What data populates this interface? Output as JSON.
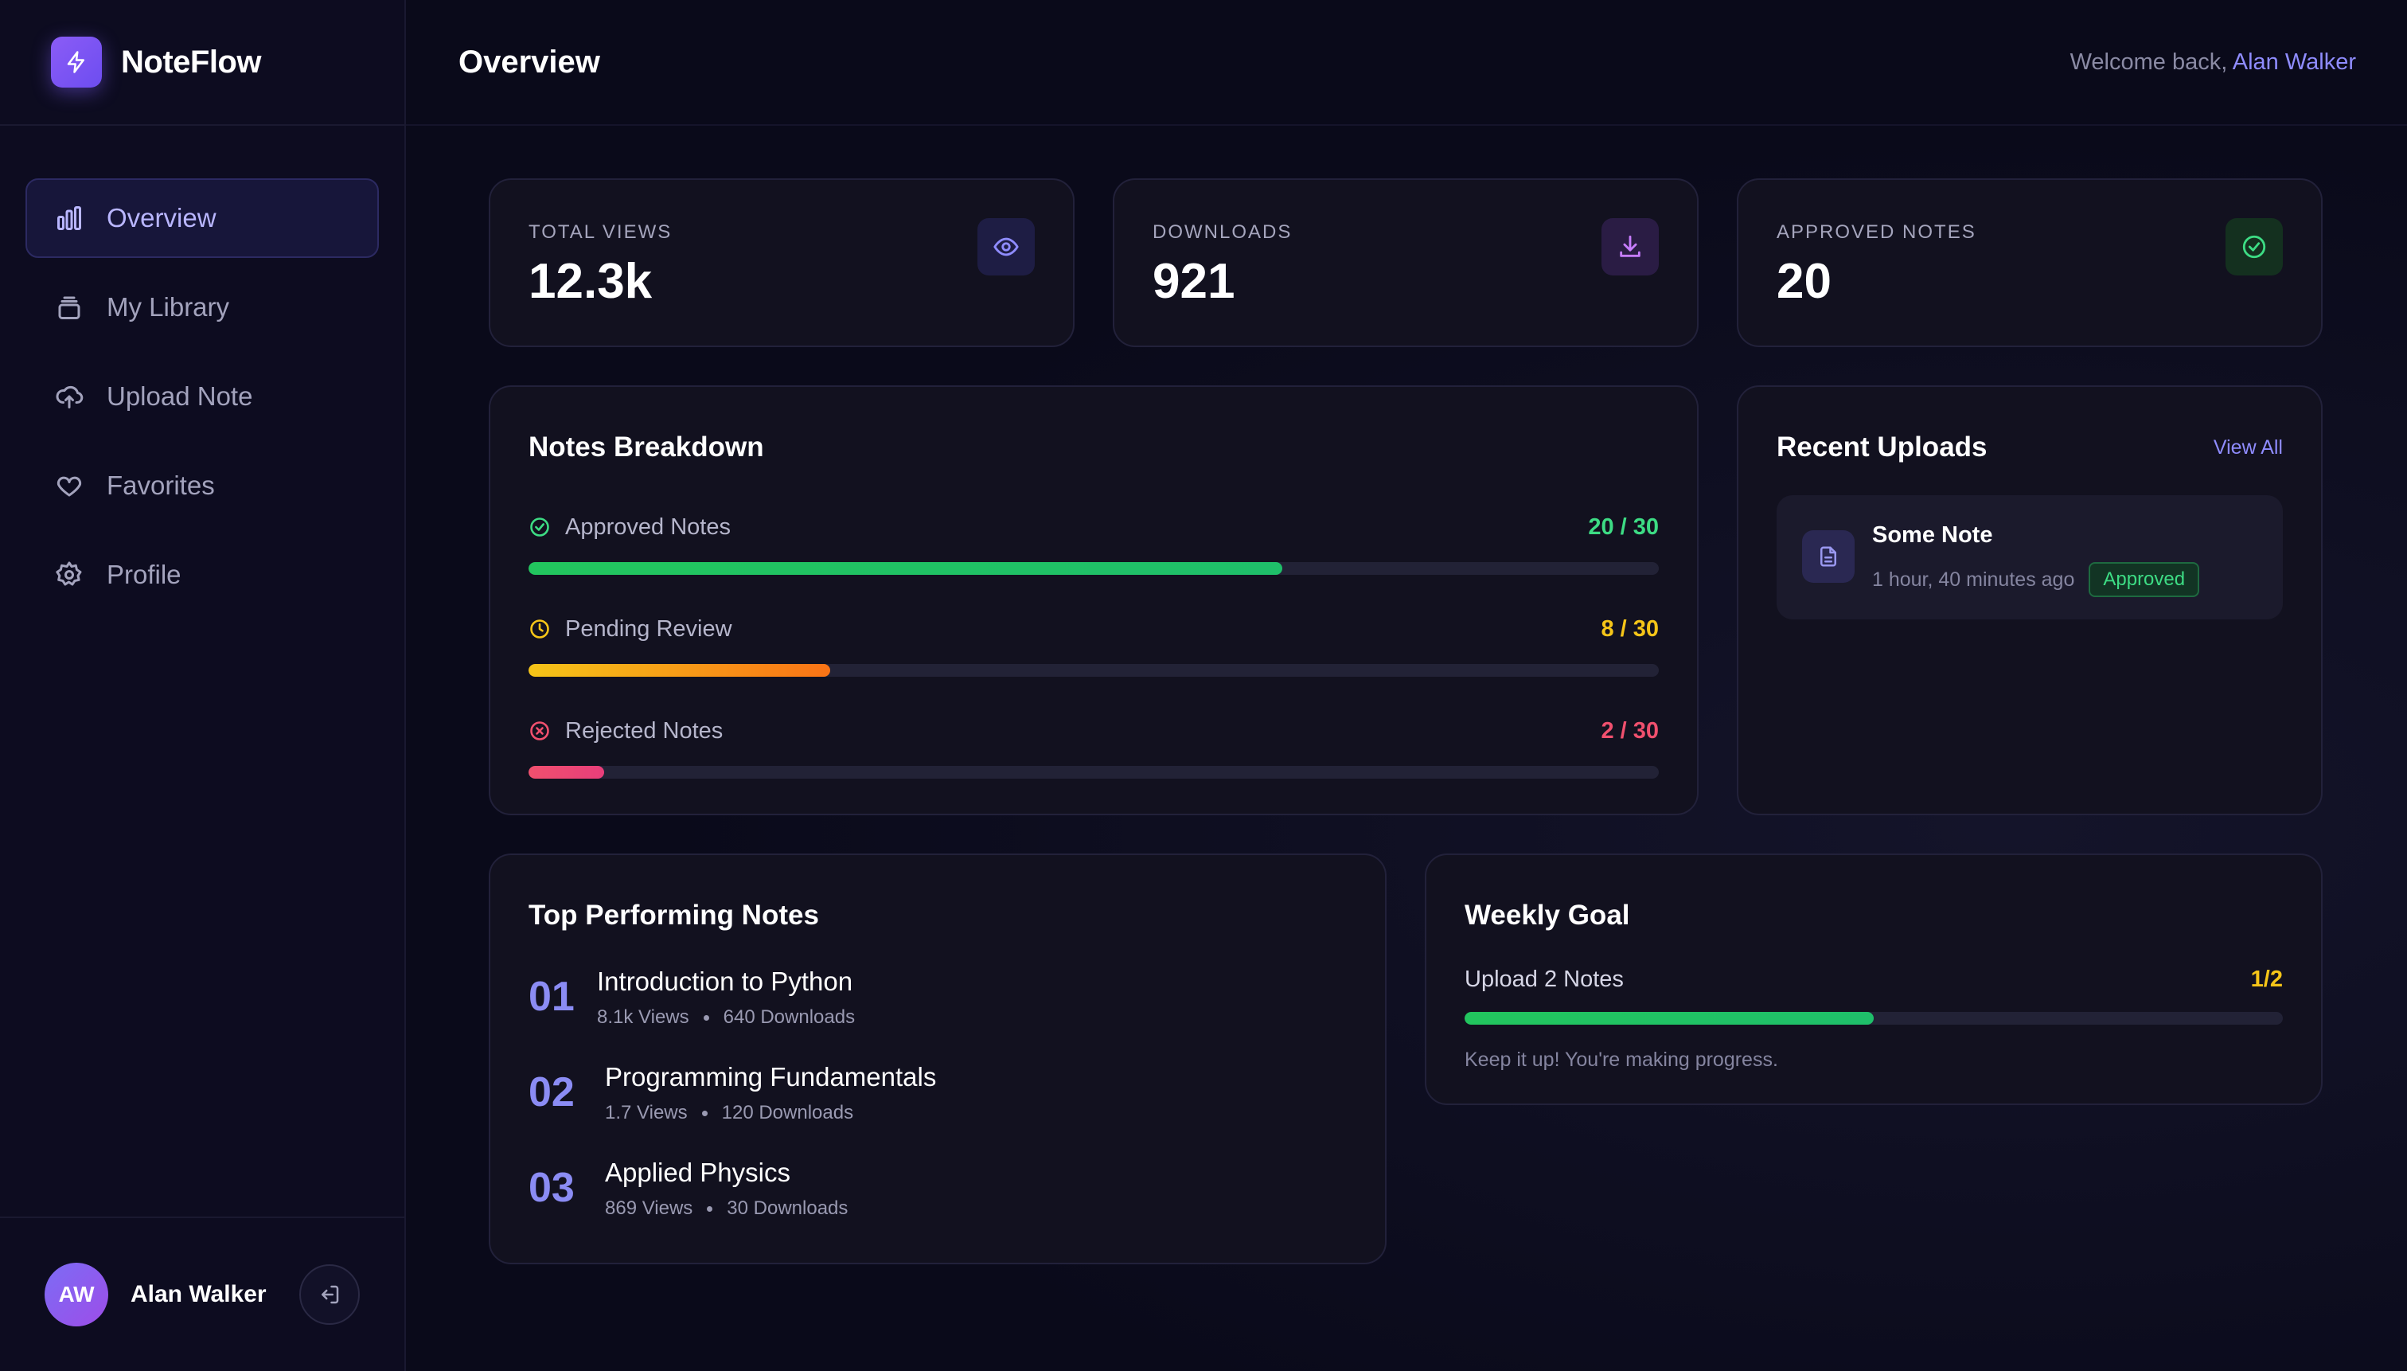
{
  "brand": {
    "name": "NoteFlow",
    "icon": "lightning-icon"
  },
  "sidebar": {
    "items": [
      {
        "label": "Overview",
        "icon": "bar-chart-icon",
        "active": true
      },
      {
        "label": "My Library",
        "icon": "library-icon",
        "active": false
      },
      {
        "label": "Upload Note",
        "icon": "cloud-upload-icon",
        "active": false
      },
      {
        "label": "Favorites",
        "icon": "heart-icon",
        "active": false
      },
      {
        "label": "Profile",
        "icon": "gear-icon",
        "active": false
      }
    ],
    "user": {
      "initials": "AW",
      "name": "Alan Walker"
    }
  },
  "header": {
    "title": "Overview",
    "welcome_prefix": "Welcome back, ",
    "welcome_name": "Alan Walker"
  },
  "stats": [
    {
      "label": "TOTAL VIEWS",
      "value": "12.3k",
      "icon": "eye-icon",
      "color": "#8f8cff"
    },
    {
      "label": "DOWNLOADS",
      "value": "921",
      "icon": "download-icon",
      "color": "#c77dff"
    },
    {
      "label": "APPROVED NOTES",
      "value": "20",
      "icon": "check-circle-icon",
      "color": "#3ddc84"
    }
  ],
  "breakdown": {
    "title": "Notes Breakdown",
    "rows": [
      {
        "label": "Approved Notes",
        "count": "20 / 30",
        "fraction": 0.667,
        "color": "#22c55e"
      },
      {
        "label": "Pending Review",
        "count": "8 / 30",
        "fraction": 0.267,
        "color": "#f5c518"
      },
      {
        "label": "Rejected Notes",
        "count": "2 / 30",
        "fraction": 0.067,
        "color": "#f0506e"
      }
    ]
  },
  "recent": {
    "title": "Recent Uploads",
    "view_all": "View All",
    "items": [
      {
        "title": "Some Note",
        "time": "1 hour, 40 minutes ago",
        "status": "Approved"
      }
    ]
  },
  "top_notes": {
    "title": "Top Performing Notes",
    "items": [
      {
        "rank": "01",
        "title": "Introduction to Python",
        "views": "8.1k Views",
        "downloads": "640 Downloads"
      },
      {
        "rank": "02",
        "title": "Programming Fundamentals",
        "views": "1.7 Views",
        "downloads": "120 Downloads"
      },
      {
        "rank": "03",
        "title": "Applied Physics",
        "views": "869 Views",
        "downloads": "30 Downloads"
      }
    ]
  },
  "weekly_goal": {
    "title": "Weekly Goal",
    "label": "Upload 2 Notes",
    "count": "1/2",
    "fraction": 0.5,
    "note": "Keep it up! You're making progress."
  }
}
